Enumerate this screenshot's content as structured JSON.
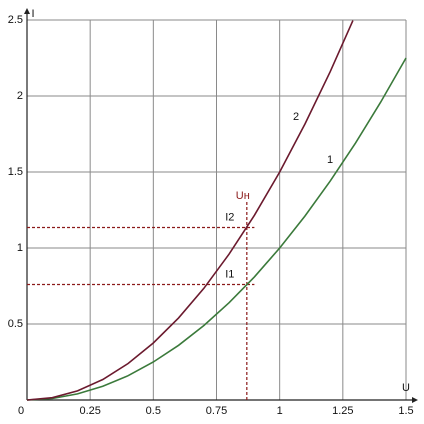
{
  "chart_data": {
    "type": "line",
    "xlabel": "U",
    "ylabel": "I",
    "xlim": [
      0,
      1.5
    ],
    "ylim": [
      0,
      2.5
    ],
    "xticks": [
      0,
      0.25,
      0.5,
      0.75,
      1,
      1.25,
      1.5
    ],
    "yticks": [
      0.5,
      1,
      1.5,
      2,
      2.5
    ],
    "grid": true,
    "series": [
      {
        "name": "1",
        "color": "#3b7a3b",
        "x": [
          0,
          0.1,
          0.2,
          0.3,
          0.4,
          0.5,
          0.6,
          0.7,
          0.8,
          0.9,
          1,
          1.1,
          1.2,
          1.3,
          1.4,
          1.5
        ],
        "values": [
          0,
          0.01,
          0.04,
          0.09,
          0.16,
          0.25,
          0.36,
          0.49,
          0.64,
          0.81,
          1,
          1.21,
          1.44,
          1.69,
          1.96,
          2.25
        ]
      },
      {
        "name": "2",
        "color": "#6b1a2e",
        "x": [
          0,
          0.1,
          0.2,
          0.3,
          0.4,
          0.5,
          0.6,
          0.7,
          0.8,
          0.9,
          1,
          1.1,
          1.2,
          1.29
        ],
        "values": [
          0,
          0.015,
          0.06,
          0.135,
          0.24,
          0.375,
          0.54,
          0.735,
          0.96,
          1.215,
          1.5,
          1.815,
          2.16,
          2.496
        ]
      }
    ],
    "annotations": {
      "un": {
        "label": "Uн",
        "value": 0.87
      },
      "i1": {
        "label": "I1",
        "value": 0.76
      },
      "i2": {
        "label": "I2",
        "value": 1.135
      }
    }
  }
}
